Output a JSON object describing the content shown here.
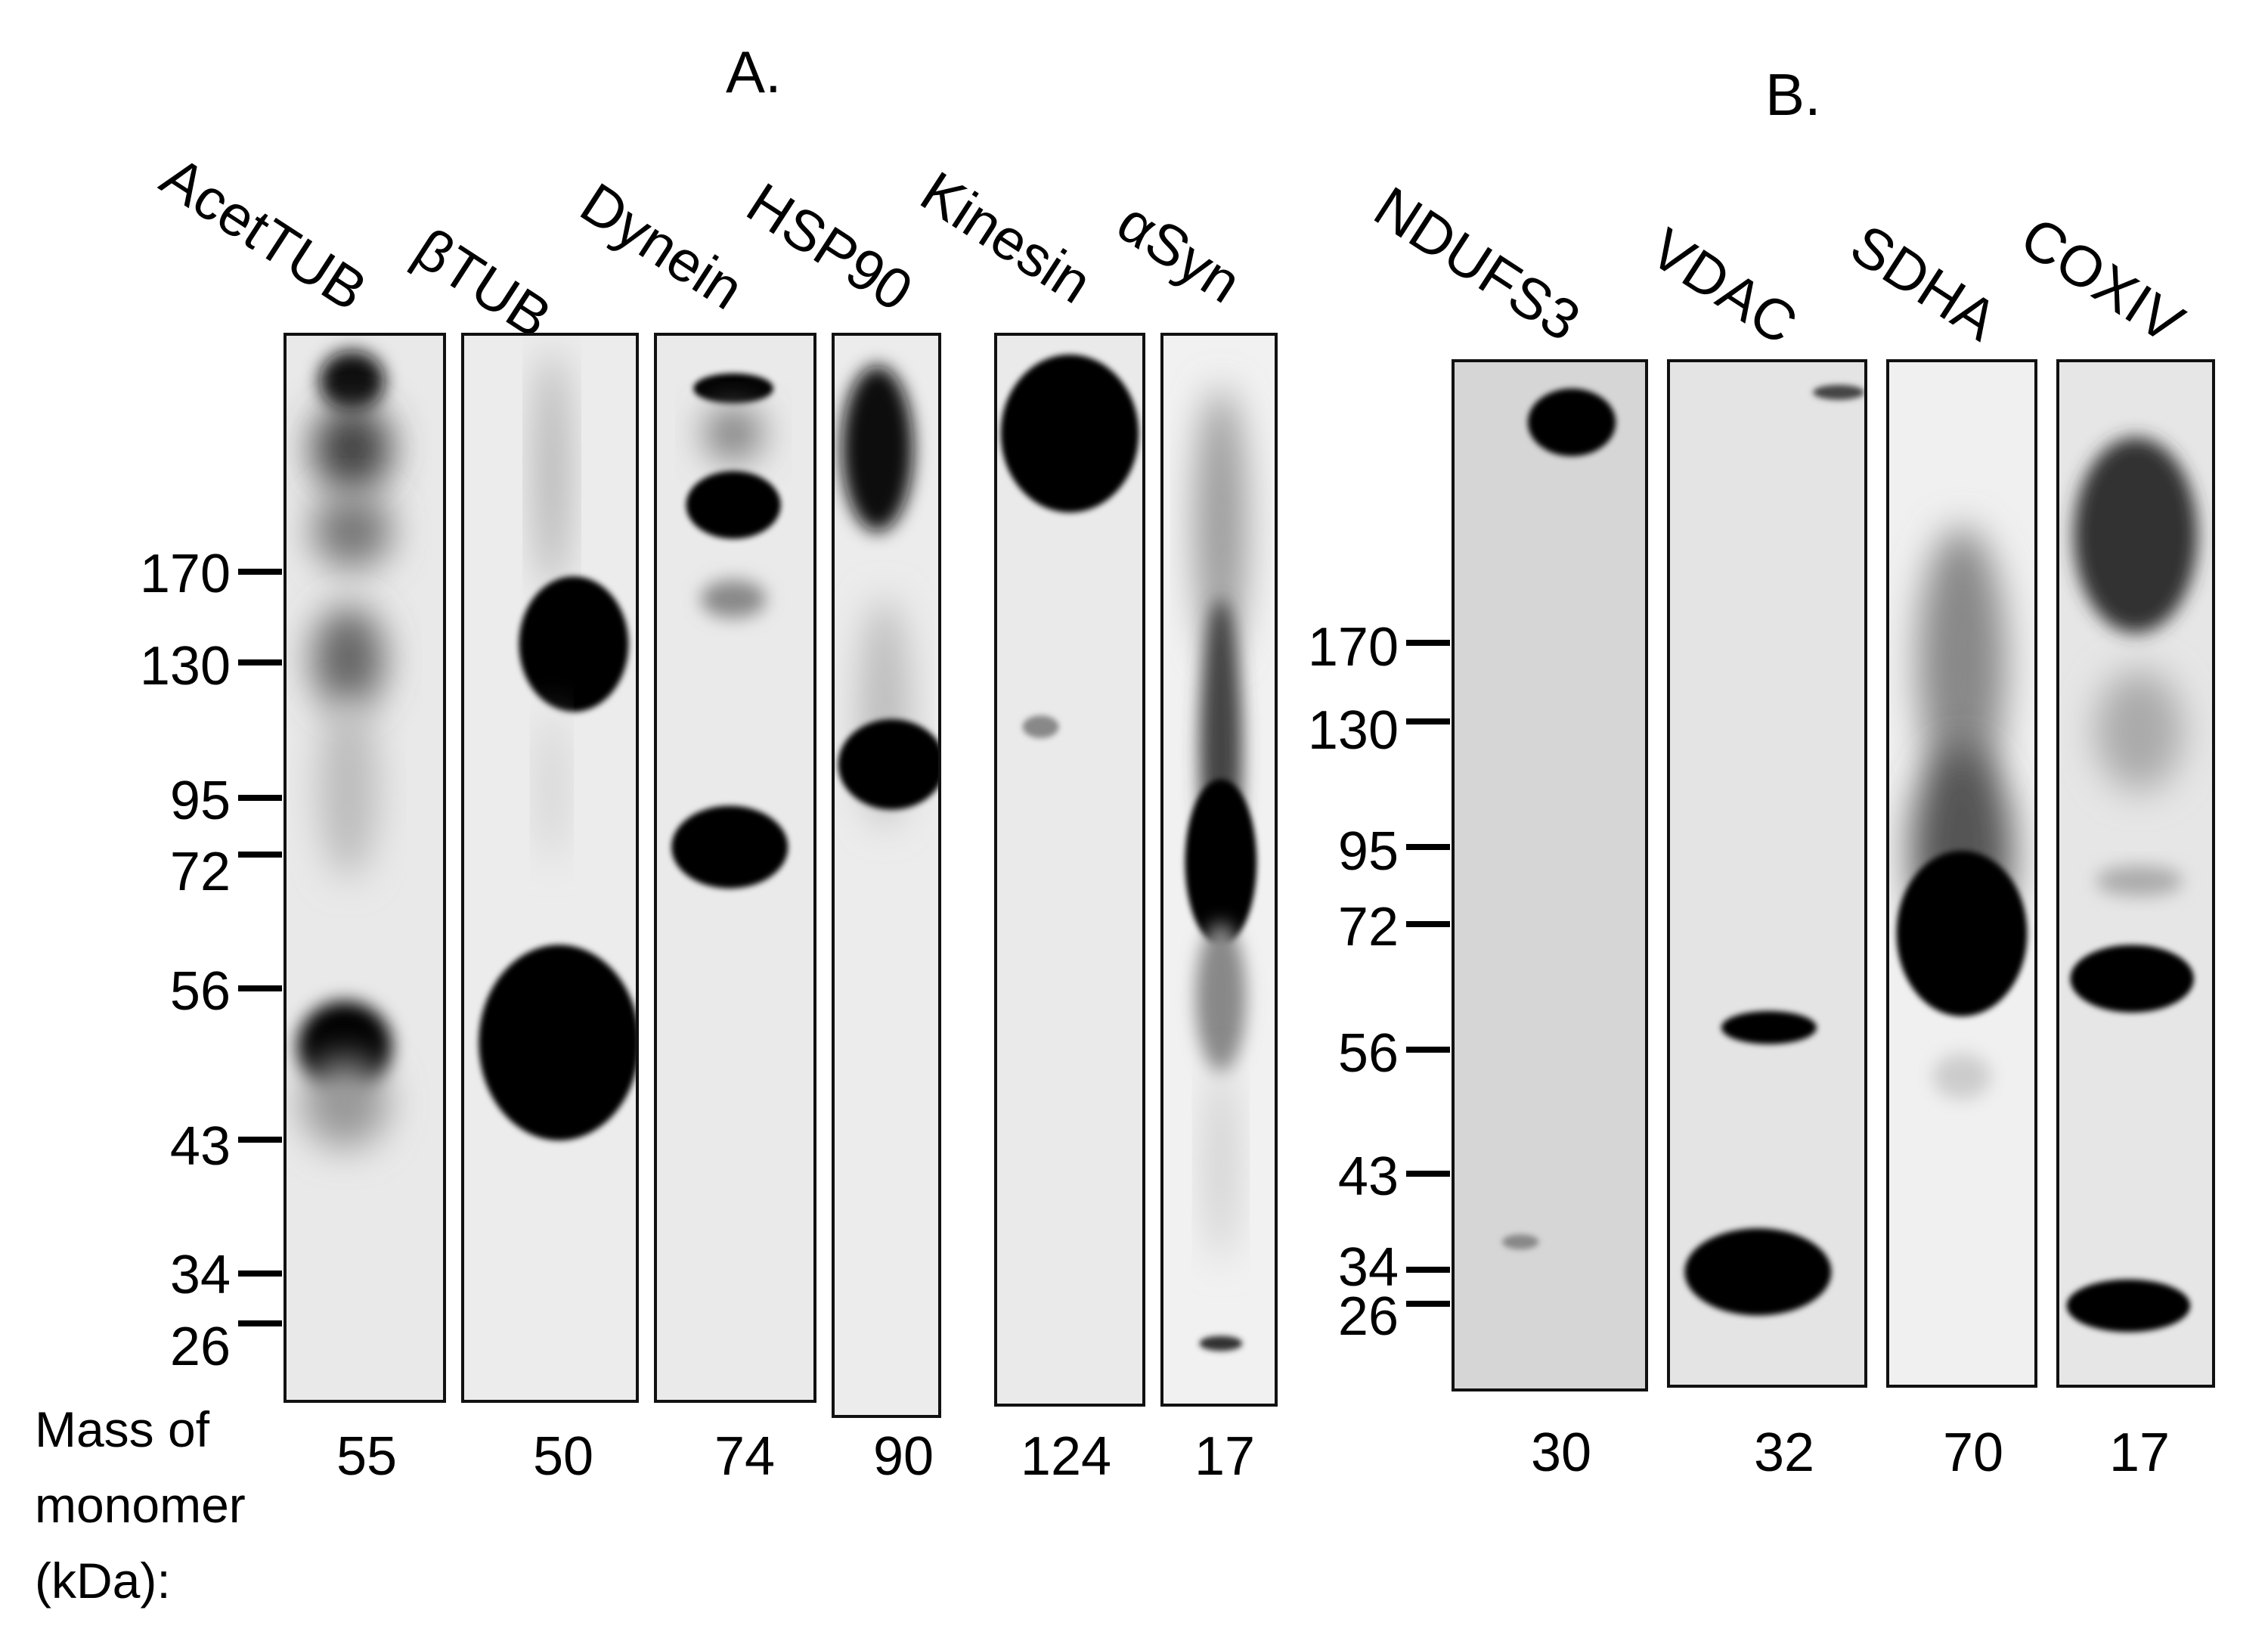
{
  "panels": {
    "A": {
      "letter": "A."
    },
    "B": {
      "letter": "B."
    }
  },
  "lanes_A": [
    {
      "label": "AcetTUB",
      "mass": "55"
    },
    {
      "label": "βTUB",
      "mass": "50"
    },
    {
      "label": "Dynein",
      "mass": "74"
    },
    {
      "label": "HSP90",
      "mass": "90"
    },
    {
      "label": "Kinesin",
      "mass": "124"
    },
    {
      "label": "αSyn",
      "mass": "17"
    }
  ],
  "lanes_B": [
    {
      "label": "NDUFS3",
      "mass": "30"
    },
    {
      "label": "VDAC",
      "mass": "32"
    },
    {
      "label": "SDHA",
      "mass": "70"
    },
    {
      "label": "COXIV",
      "mass": "17"
    }
  ],
  "markers_A": [
    "170",
    "130",
    "95",
    "72",
    "56",
    "43",
    "34",
    "26"
  ],
  "markers_B": [
    "170",
    "130",
    "95",
    "72",
    "56",
    "43",
    "34",
    "26"
  ],
  "mass_caption": {
    "line1": "Mass of",
    "line2": "monomer",
    "line3": "(kDa):"
  }
}
